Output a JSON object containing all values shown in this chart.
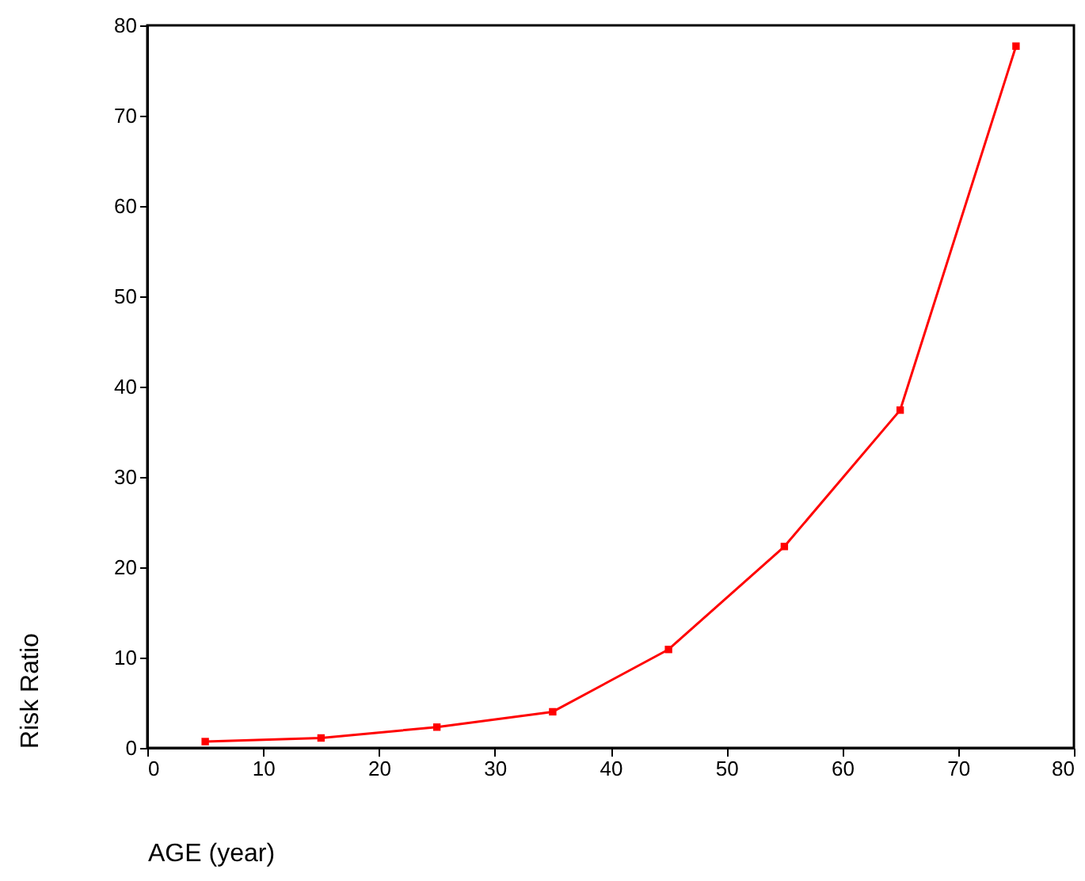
{
  "chart_data": {
    "type": "line",
    "xlabel": "AGE (year)",
    "ylabel": "Risk Ratio",
    "x": [
      5,
      15,
      25,
      35,
      45,
      55,
      65,
      75
    ],
    "series": [
      {
        "color": "#ff0000",
        "values": [
          0.7,
          1.1,
          2.3,
          4.0,
          10.9,
          22.3,
          37.4,
          77.7
        ]
      }
    ],
    "xlim": [
      0,
      80
    ],
    "xticks": [
      0,
      10,
      20,
      30,
      40,
      50,
      60,
      70,
      80
    ],
    "ylim": [
      0,
      80
    ],
    "yticks": [
      0,
      10,
      20,
      30,
      40,
      50,
      60,
      70,
      80
    ],
    "grid": false,
    "marker": "square",
    "line_style": "solid"
  }
}
